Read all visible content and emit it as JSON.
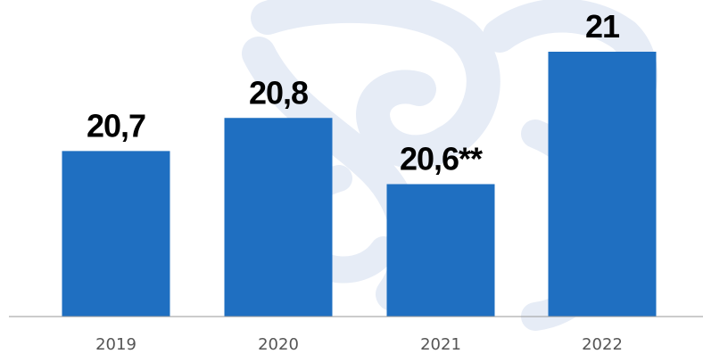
{
  "chart_data": {
    "type": "bar",
    "categories": [
      "2019",
      "2020",
      "2021",
      "2022"
    ],
    "values": [
      20.7,
      20.8,
      20.6,
      21.0
    ],
    "data_labels": [
      "20,7",
      "20,8",
      "20,6**",
      "21"
    ],
    "title": "",
    "xlabel": "",
    "ylabel": "",
    "ylim": [
      20.2,
      21.0
    ],
    "grid": false,
    "legend": "none"
  },
  "colors": {
    "bar": "#1f6fc1",
    "baseline": "#9a9a9a",
    "watermark": "#e6ecf6",
    "label": "#000000",
    "tick": "#555555"
  },
  "watermark": {
    "icon": "eagle-emblem-watermark-icon"
  }
}
